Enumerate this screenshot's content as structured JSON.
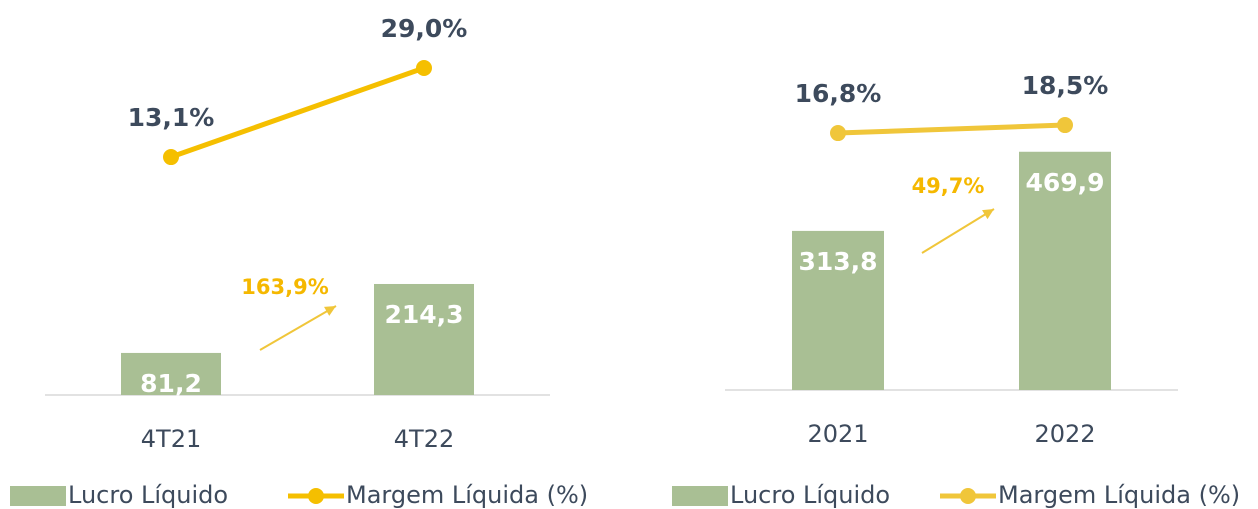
{
  "chart_data": [
    {
      "type": "bar",
      "categories": [
        "4T21",
        "4T22"
      ],
      "series": [
        {
          "name": "Lucro Líquido",
          "type": "bar",
          "color": "#a9bf94",
          "values": [
            81.2,
            214.3
          ],
          "value_labels": [
            "81,2",
            "214,3"
          ]
        },
        {
          "name": "Margem Líquida (%)",
          "type": "line",
          "color": "#f5bf00",
          "values": [
            13.1,
            29.0
          ],
          "value_labels": [
            "13,1%",
            "29,0%"
          ]
        }
      ],
      "annotations": [
        "163,9%"
      ]
    },
    {
      "type": "bar",
      "categories": [
        "2021",
        "2022"
      ],
      "series": [
        {
          "name": "Lucro Líquido",
          "type": "bar",
          "color": "#a9bf94",
          "values": [
            313.8,
            469.9
          ],
          "value_labels": [
            "313,8",
            "469,9"
          ]
        },
        {
          "name": "Margem Líquida (%)",
          "type": "line",
          "color": "#f0c63a",
          "values": [
            16.8,
            18.5
          ],
          "value_labels": [
            "16,8%",
            "18,5%"
          ]
        }
      ],
      "annotations": [
        "49,7%"
      ]
    }
  ]
}
